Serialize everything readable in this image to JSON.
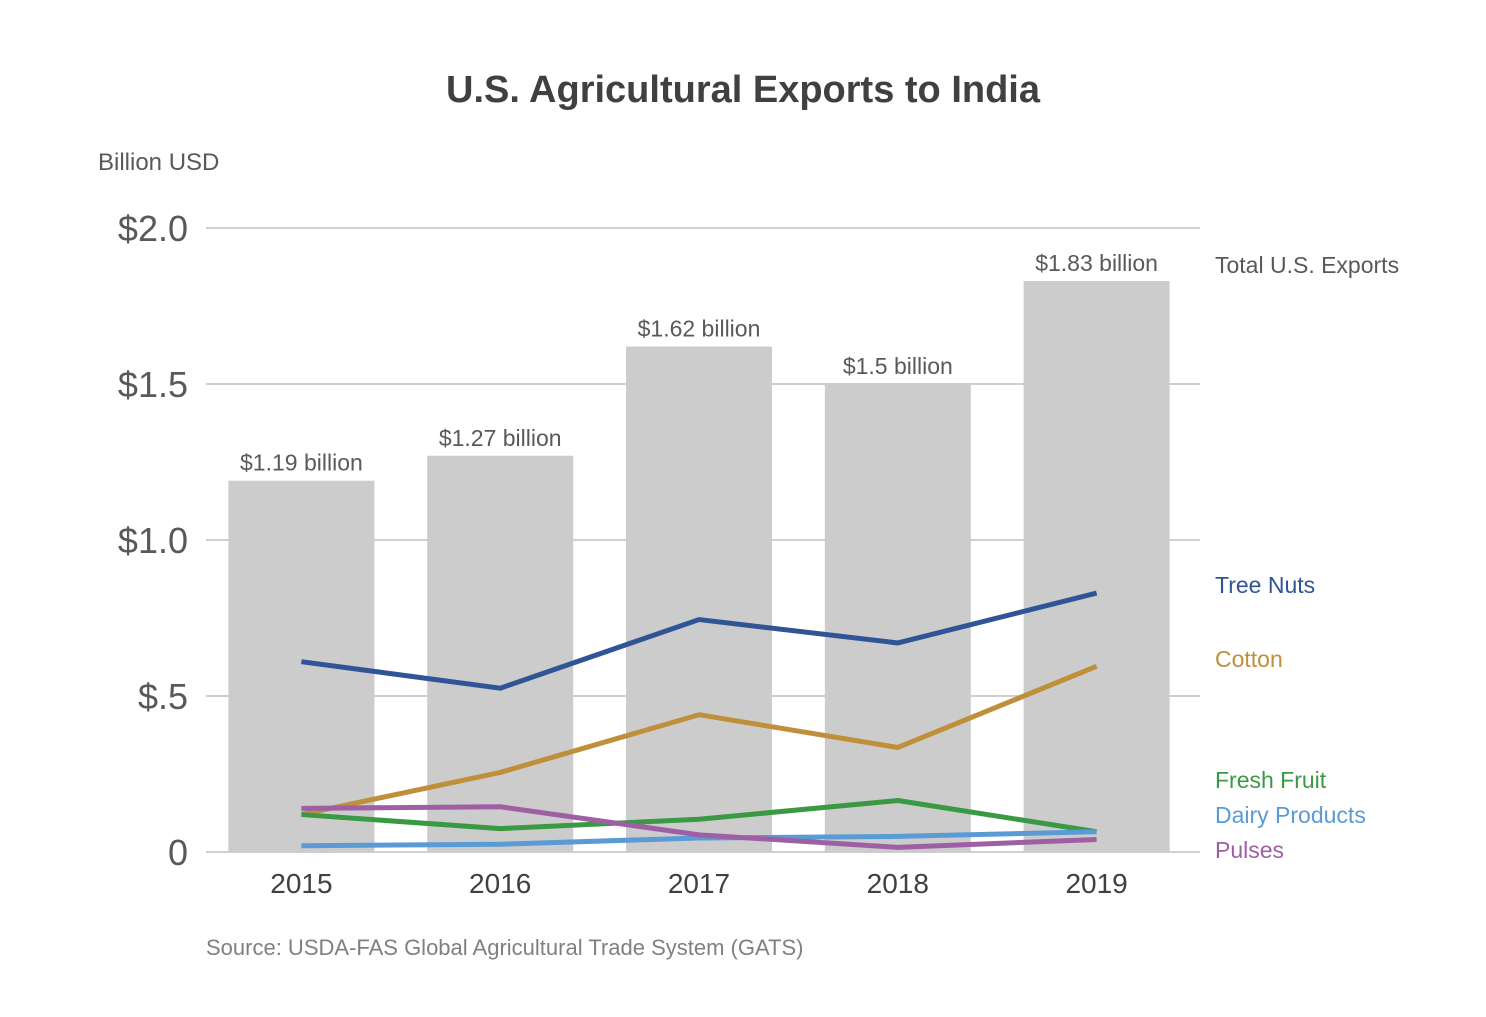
{
  "chart_data": {
    "type": "bar",
    "title": "U.S. Agricultural Exports to India",
    "unit_label": "Billion USD",
    "source": "Source: USDA-FAS Global Agricultural Trade System (GATS)",
    "categories": [
      "2015",
      "2016",
      "2017",
      "2018",
      "2019"
    ],
    "ylim": [
      0,
      2.0
    ],
    "yticks": [
      {
        "value": 0,
        "label": "0"
      },
      {
        "value": 0.5,
        "label": "$.5"
      },
      {
        "value": 1.0,
        "label": "$1.0"
      },
      {
        "value": 1.5,
        "label": "$1.5"
      },
      {
        "value": 2.0,
        "label": "$2.0"
      }
    ],
    "grid": true,
    "bar_series": {
      "name": "Total U.S. Exports",
      "color": "#cccccc",
      "values": [
        1.19,
        1.27,
        1.62,
        1.5,
        1.83
      ],
      "labels": [
        "$1.19 billion",
        "$1.27 billion",
        "$1.62 billion",
        "$1.5 billion",
        "$1.83 billion"
      ]
    },
    "line_series": [
      {
        "name": "Tree Nuts",
        "color": "#2f5597",
        "values": [
          0.61,
          0.525,
          0.745,
          0.67,
          0.83
        ]
      },
      {
        "name": "Cotton",
        "color": "#bf8f3a",
        "values": [
          0.12,
          0.255,
          0.44,
          0.335,
          0.595
        ]
      },
      {
        "name": "Fresh Fruit",
        "color": "#3a9a44",
        "values": [
          0.12,
          0.075,
          0.105,
          0.165,
          0.065
        ]
      },
      {
        "name": "Dairy Products",
        "color": "#5b9bd5",
        "values": [
          0.02,
          0.025,
          0.045,
          0.05,
          0.065
        ]
      },
      {
        "name": "Pulses",
        "color": "#9e5fa5",
        "values": [
          0.14,
          0.145,
          0.055,
          0.015,
          0.04
        ]
      }
    ],
    "legend_placement": "right"
  }
}
